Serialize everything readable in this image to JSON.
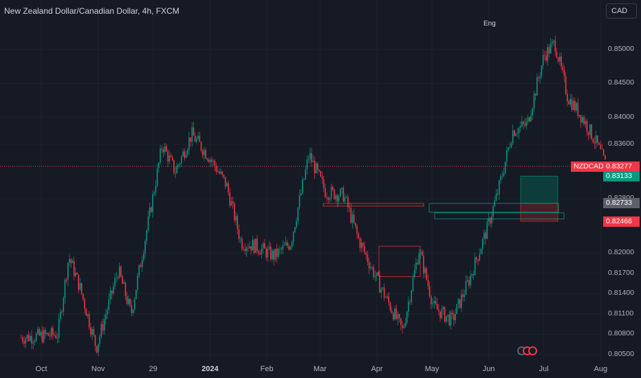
{
  "header": {
    "title": "New Zealand Dollar/Canadian Dollar, 4h, FXCM",
    "currency_button": "CAD"
  },
  "annotation": {
    "label": "Eng"
  },
  "price_axis": {
    "ticks": [
      "0.85000",
      "0.84500",
      "0.84000",
      "0.83600",
      "0.83277",
      "0.83133",
      "0.82800",
      "0.82733",
      "0.82466",
      "0.82000",
      "0.81700",
      "0.81400",
      "0.81100",
      "0.80800",
      "0.80500"
    ]
  },
  "time_axis": {
    "ticks": [
      "Oct",
      "Nov",
      "29",
      "2024",
      "Feb",
      "Mar",
      "Apr",
      "May",
      "Jun",
      "Jul",
      "Aug"
    ]
  },
  "price_labels": {
    "symbol": "NZDCAD",
    "current": "0.83277",
    "take_profit": "0.83133",
    "entry": "0.82733",
    "stop_loss": "0.82466"
  },
  "colors": {
    "background": "#161a25",
    "up": "#089981",
    "down": "#f23645",
    "grid": "#1e222d",
    "entry_label": "#5d606b",
    "profit_zone": "#0d3d3a",
    "loss_zone": "#4a1e27"
  },
  "chart_data": {
    "type": "candlestick",
    "symbol": "NZDCAD",
    "timeframe": "4h",
    "source": "FXCM",
    "ylim": [
      0.8046,
      0.8547
    ],
    "approx_close_path": [
      {
        "date": "2023-09-20",
        "close": 0.8075
      },
      {
        "date": "2023-10-10",
        "close": 0.808
      },
      {
        "date": "2023-10-16",
        "close": 0.8195
      },
      {
        "date": "2023-10-22",
        "close": 0.815
      },
      {
        "date": "2023-10-31",
        "close": 0.806
      },
      {
        "date": "2023-11-12",
        "close": 0.8175
      },
      {
        "date": "2023-11-19",
        "close": 0.811
      },
      {
        "date": "2023-11-30",
        "close": 0.827
      },
      {
        "date": "2023-12-06",
        "close": 0.836
      },
      {
        "date": "2023-12-13",
        "close": 0.832
      },
      {
        "date": "2023-12-22",
        "close": 0.8375
      },
      {
        "date": "2024-01-01",
        "close": 0.834
      },
      {
        "date": "2024-01-10",
        "close": 0.83
      },
      {
        "date": "2024-01-18",
        "close": 0.8215
      },
      {
        "date": "2024-01-26",
        "close": 0.821
      },
      {
        "date": "2024-02-05",
        "close": 0.8195
      },
      {
        "date": "2024-02-14",
        "close": 0.8215
      },
      {
        "date": "2024-02-24",
        "close": 0.8345
      },
      {
        "date": "2024-03-04",
        "close": 0.829
      },
      {
        "date": "2024-03-14",
        "close": 0.8285
      },
      {
        "date": "2024-03-22",
        "close": 0.822
      },
      {
        "date": "2024-04-02",
        "close": 0.8155
      },
      {
        "date": "2024-04-15",
        "close": 0.8085
      },
      {
        "date": "2024-04-24",
        "close": 0.8205
      },
      {
        "date": "2024-05-02",
        "close": 0.812
      },
      {
        "date": "2024-05-12",
        "close": 0.81
      },
      {
        "date": "2024-05-22",
        "close": 0.8165
      },
      {
        "date": "2024-05-31",
        "close": 0.8235
      },
      {
        "date": "2024-06-06",
        "close": 0.829
      },
      {
        "date": "2024-06-14",
        "close": 0.838
      },
      {
        "date": "2024-06-22",
        "close": 0.839
      },
      {
        "date": "2024-07-01",
        "close": 0.849
      },
      {
        "date": "2024-07-07",
        "close": 0.851
      },
      {
        "date": "2024-07-14",
        "close": 0.843
      },
      {
        "date": "2024-07-22",
        "close": 0.84
      },
      {
        "date": "2024-07-30",
        "close": 0.836
      },
      {
        "date": "2024-08-04",
        "close": 0.8328
      }
    ],
    "lines": [
      {
        "name": "current-price",
        "value": 0.83277
      }
    ],
    "position_tool": {
      "entry": 0.82733,
      "take_profit": 0.83133,
      "stop_loss": 0.82466
    }
  }
}
